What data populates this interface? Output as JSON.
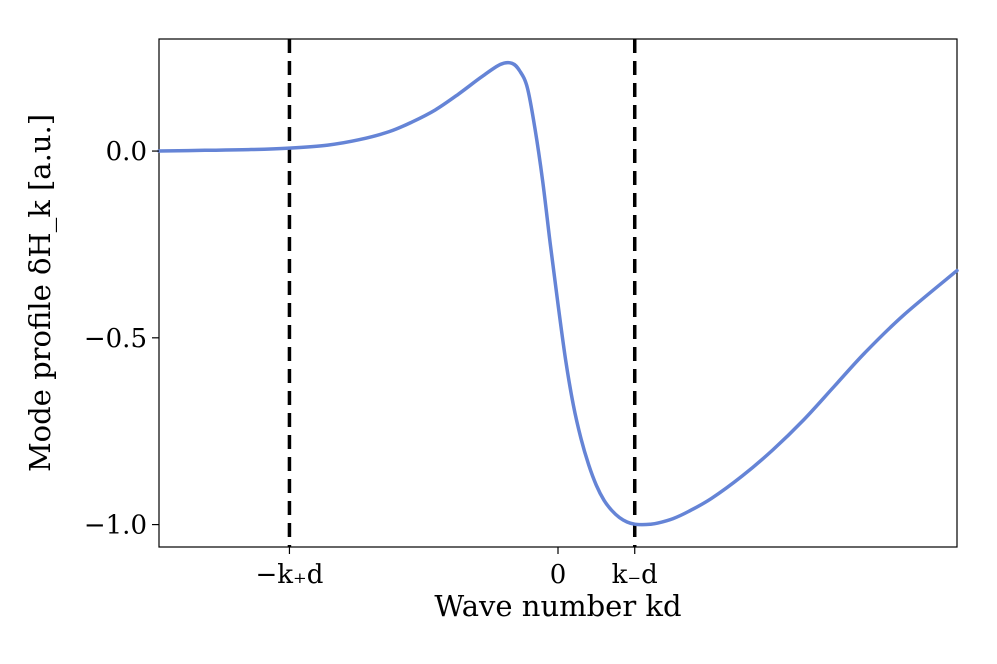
{
  "chart_data": {
    "type": "line",
    "title": "",
    "xlabel": "Wave number kd",
    "ylabel": "Mode profile δH_k [a.u.]",
    "xlim": [
      -5.2,
      5.2
    ],
    "ylim": [
      -1.06,
      0.3
    ],
    "grid": false,
    "legend": "none",
    "x_ticks": [
      {
        "value": -3.5,
        "label": "−k₊d"
      },
      {
        "value": 0,
        "label": "0"
      },
      {
        "value": 1.0,
        "label": "k₋d"
      }
    ],
    "y_ticks": [
      {
        "value": 0.0,
        "label": "0.0"
      },
      {
        "value": -0.5,
        "label": "−0.5"
      },
      {
        "value": -1.0,
        "label": "−1.0"
      }
    ],
    "vlines": [
      {
        "x": -3.5,
        "style": "dashed",
        "color": "#000000"
      },
      {
        "x": 1.0,
        "style": "dashed",
        "color": "#000000"
      }
    ],
    "series": [
      {
        "color": "#6584d6",
        "x": [
          -5.2,
          -4.6,
          -4.0,
          -3.5,
          -3.0,
          -2.6,
          -2.2,
          -1.9,
          -1.6,
          -1.3,
          -1.0,
          -0.75,
          -0.6,
          -0.5,
          -0.4,
          -0.3,
          -0.2,
          -0.1,
          0.0,
          0.1,
          0.2,
          0.3,
          0.4,
          0.5,
          0.6,
          0.7,
          0.8,
          0.9,
          1.0,
          1.1,
          1.2,
          1.3,
          1.5,
          1.7,
          2.0,
          2.4,
          2.8,
          3.2,
          3.6,
          4.0,
          4.5,
          5.2
        ],
        "y": [
          0.0,
          0.002,
          0.004,
          0.008,
          0.016,
          0.03,
          0.052,
          0.078,
          0.11,
          0.152,
          0.198,
          0.232,
          0.235,
          0.215,
          0.17,
          0.06,
          -0.08,
          -0.25,
          -0.41,
          -0.56,
          -0.68,
          -0.77,
          -0.84,
          -0.895,
          -0.935,
          -0.962,
          -0.981,
          -0.993,
          -0.999,
          -1.0,
          -0.999,
          -0.996,
          -0.984,
          -0.965,
          -0.93,
          -0.87,
          -0.8,
          -0.72,
          -0.63,
          -0.54,
          -0.44,
          -0.32
        ]
      }
    ]
  }
}
